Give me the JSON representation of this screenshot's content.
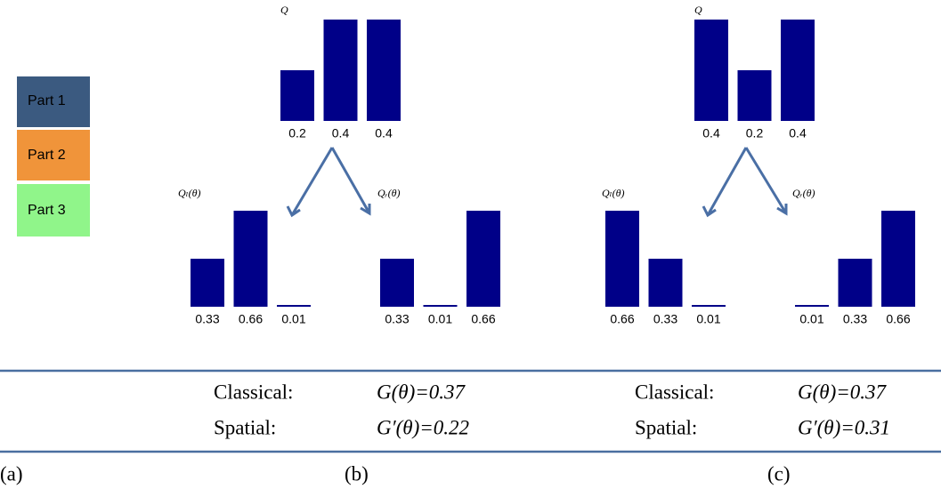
{
  "legend": [
    "Part 1",
    "Part 2",
    "Part 3"
  ],
  "chart_data": [
    {
      "type": "bar",
      "title": "Q",
      "values": [
        0.2,
        0.4,
        0.4
      ],
      "ylim": [
        0,
        0.4
      ],
      "color": "#000088"
    },
    {
      "type": "bar",
      "title": "Qₗ(θ)",
      "values": [
        0.33,
        0.66,
        0.01
      ],
      "ylim": [
        0,
        0.66
      ],
      "color": "#000088"
    },
    {
      "type": "bar",
      "title": "Qᵣ(θ)",
      "values": [
        0.33,
        0.01,
        0.66
      ],
      "ylim": [
        0,
        0.66
      ],
      "color": "#000088"
    },
    {
      "type": "bar",
      "title": "Q",
      "values": [
        0.4,
        0.2,
        0.4
      ],
      "ylim": [
        0,
        0.4
      ],
      "color": "#000088"
    },
    {
      "type": "bar",
      "title": "Qₗ(θ)",
      "values": [
        0.66,
        0.33,
        0.01
      ],
      "ylim": [
        0,
        0.66
      ],
      "color": "#000088"
    },
    {
      "type": "bar",
      "title": "Qᵣ(θ)",
      "values": [
        0.01,
        0.33,
        0.66
      ],
      "ylim": [
        0,
        0.66
      ],
      "color": "#000088"
    }
  ],
  "tables": [
    {
      "rows": [
        [
          "Classical:",
          "G(θ)=0.37"
        ],
        [
          "Spatial:",
          "G′(θ)=0.22"
        ]
      ]
    },
    {
      "rows": [
        [
          "Classical:",
          "G(θ)=0.37"
        ],
        [
          "Spatial:",
          "G′(θ)=0.31"
        ]
      ]
    }
  ],
  "panel_labels": [
    "(a)",
    "(b)",
    "(c)"
  ]
}
